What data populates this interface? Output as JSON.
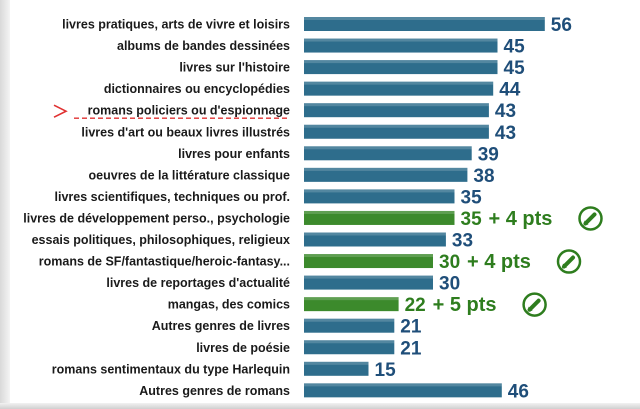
{
  "chart_data": {
    "type": "bar",
    "orientation": "horizontal",
    "title": "",
    "xlabel": "",
    "ylabel": "",
    "xlim": [
      0,
      60
    ],
    "grid": false,
    "highlighted_category": "romans policiers ou d'espionnage",
    "categories": [
      "livres pratiques, arts de vivre et loisirs",
      "albums de bandes dessinées",
      "livres sur l'histoire",
      "dictionnaires ou encyclopédies",
      "romans policiers ou d'espionnage",
      "livres d'art ou beaux livres illustrés",
      "livres pour enfants",
      "oeuvres de la littérature classique",
      "livres scientifiques, techniques ou prof.",
      "livres de développement perso., psychologie",
      "essais politiques, philosophiques, religieux",
      "romans de SF/fantastique/heroic-fantasy...",
      "livres de reportages d'actualité",
      "mangas, des comics",
      "Autres genres de livres",
      "livres de poésie",
      "romans sentimentaux du type Harlequin",
      "Autres genres de romans"
    ],
    "values": [
      56,
      45,
      45,
      44,
      43,
      43,
      39,
      38,
      35,
      35,
      33,
      30,
      30,
      22,
      21,
      21,
      15,
      46
    ],
    "deltas": [
      "",
      "",
      "",
      "",
      "",
      "",
      "",
      "",
      "",
      "+ 4 pts",
      "",
      "+ 4 pts",
      "",
      "+ 5 pts",
      "",
      "",
      "",
      ""
    ],
    "delta_icon": "pencil-circle-icon",
    "colors": {
      "bar": "#2e6d8c",
      "bar_highlight": "#3c8a2c",
      "value_text": "#1f4e79",
      "value_highlight_text": "#2e7d1e",
      "marker": "#e03030"
    }
  }
}
